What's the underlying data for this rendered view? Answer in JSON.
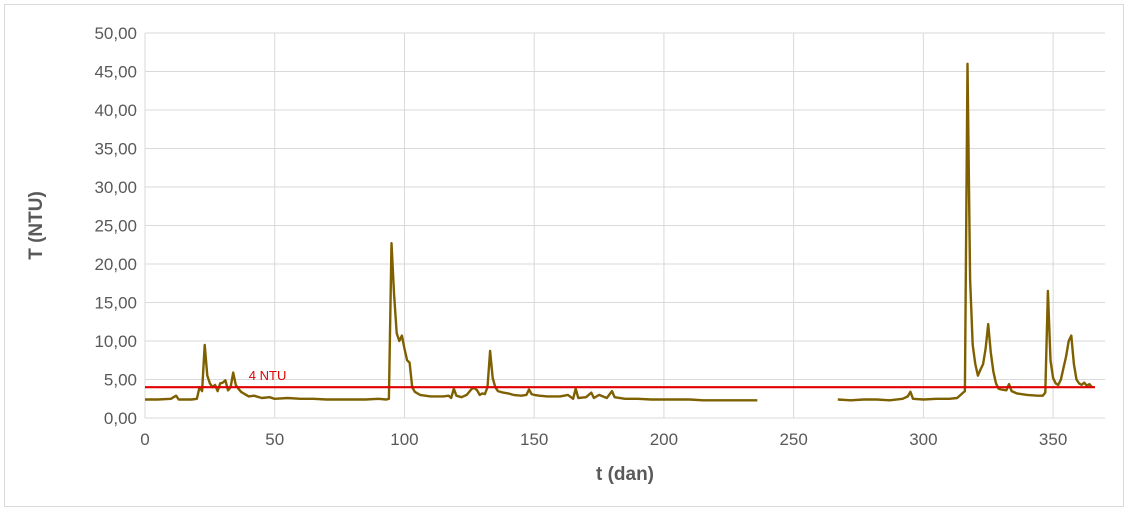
{
  "chart_data": {
    "type": "line",
    "title": "",
    "xlabel": "t (dan)",
    "ylabel": "T (NTU)",
    "xlim": [
      0,
      370
    ],
    "ylim": [
      0,
      50
    ],
    "x_ticks": [
      0,
      50,
      100,
      150,
      200,
      250,
      300,
      350
    ],
    "x_tick_labels": [
      "0",
      "50",
      "100",
      "150",
      "200",
      "250",
      "300",
      "350"
    ],
    "y_ticks": [
      0,
      5,
      10,
      15,
      20,
      25,
      30,
      35,
      40,
      45,
      50
    ],
    "y_tick_labels": [
      "0,00",
      "5,00",
      "10,00",
      "15,00",
      "20,00",
      "25,00",
      "30,00",
      "35,00",
      "40,00",
      "45,00",
      "50,00"
    ],
    "grid": "vertical-and-horizontal",
    "threshold": {
      "value": 4,
      "label": "4 NTU",
      "color": "#e00000"
    },
    "series": [
      {
        "color": "#7f6000",
        "segments": [
          [
            [
              0,
              2.4
            ],
            [
              5,
              2.4
            ],
            [
              10,
              2.5
            ],
            [
              12,
              2.9
            ],
            [
              13,
              2.4
            ],
            [
              18,
              2.4
            ],
            [
              20,
              2.5
            ],
            [
              21,
              4.0
            ],
            [
              22,
              3.5
            ],
            [
              23,
              9.5
            ],
            [
              24,
              5.5
            ],
            [
              25,
              4.5
            ],
            [
              26,
              4.0
            ],
            [
              27,
              4.3
            ],
            [
              28,
              3.5
            ],
            [
              29,
              4.5
            ],
            [
              30,
              4.6
            ],
            [
              31,
              4.9
            ],
            [
              32,
              3.6
            ],
            [
              33,
              4.0
            ],
            [
              34,
              5.9
            ],
            [
              35,
              4.3
            ],
            [
              36,
              3.8
            ],
            [
              37,
              3.4
            ],
            [
              38,
              3.2
            ],
            [
              40,
              2.8
            ],
            [
              42,
              2.9
            ],
            [
              45,
              2.6
            ],
            [
              48,
              2.7
            ],
            [
              50,
              2.5
            ],
            [
              55,
              2.6
            ],
            [
              60,
              2.5
            ],
            [
              65,
              2.5
            ],
            [
              70,
              2.4
            ],
            [
              75,
              2.4
            ],
            [
              80,
              2.4
            ],
            [
              85,
              2.4
            ],
            [
              90,
              2.5
            ],
            [
              93,
              2.4
            ],
            [
              94,
              2.5
            ],
            [
              95,
              22.7
            ],
            [
              96,
              16.0
            ],
            [
              97,
              11.0
            ],
            [
              98,
              10.0
            ],
            [
              99,
              10.7
            ],
            [
              100,
              9.0
            ],
            [
              101,
              7.5
            ],
            [
              102,
              7.2
            ],
            [
              103,
              4.0
            ],
            [
              104,
              3.4
            ],
            [
              106,
              3.0
            ],
            [
              110,
              2.8
            ],
            [
              115,
              2.8
            ],
            [
              117,
              2.9
            ],
            [
              118,
              2.6
            ],
            [
              119,
              3.8
            ],
            [
              120,
              2.9
            ],
            [
              122,
              2.7
            ],
            [
              124,
              3.0
            ],
            [
              126,
              3.8
            ],
            [
              127,
              3.9
            ],
            [
              128,
              3.6
            ],
            [
              129,
              3.0
            ],
            [
              130,
              3.2
            ],
            [
              131,
              3.1
            ],
            [
              132,
              4.0
            ],
            [
              133,
              8.7
            ],
            [
              134,
              5.2
            ],
            [
              135,
              4.0
            ],
            [
              136,
              3.5
            ],
            [
              138,
              3.3
            ],
            [
              140,
              3.2
            ],
            [
              142,
              3.0
            ],
            [
              145,
              2.9
            ],
            [
              147,
              3.0
            ],
            [
              148,
              3.7
            ],
            [
              149,
              3.1
            ],
            [
              150,
              3.0
            ],
            [
              152,
              2.9
            ],
            [
              155,
              2.8
            ],
            [
              160,
              2.8
            ],
            [
              163,
              3.0
            ],
            [
              165,
              2.5
            ],
            [
              166,
              3.8
            ],
            [
              167,
              2.6
            ],
            [
              170,
              2.7
            ],
            [
              172,
              3.3
            ],
            [
              173,
              2.6
            ],
            [
              175,
              3.0
            ],
            [
              178,
              2.6
            ],
            [
              180,
              3.5
            ],
            [
              181,
              2.7
            ],
            [
              185,
              2.5
            ],
            [
              190,
              2.5
            ],
            [
              195,
              2.4
            ],
            [
              200,
              2.4
            ],
            [
              205,
              2.4
            ],
            [
              210,
              2.4
            ],
            [
              215,
              2.3
            ],
            [
              220,
              2.3
            ],
            [
              225,
              2.3
            ],
            [
              230,
              2.3
            ],
            [
              236,
              2.3
            ]
          ],
          [
            [
              267,
              2.4
            ],
            [
              272,
              2.3
            ],
            [
              277,
              2.4
            ],
            [
              282,
              2.4
            ],
            [
              287,
              2.3
            ],
            [
              292,
              2.5
            ],
            [
              294,
              2.8
            ],
            [
              295,
              3.4
            ],
            [
              296,
              2.5
            ],
            [
              300,
              2.4
            ],
            [
              305,
              2.5
            ],
            [
              310,
              2.5
            ],
            [
              313,
              2.6
            ],
            [
              315,
              3.2
            ],
            [
              316,
              3.5
            ],
            [
              317,
              46.0
            ],
            [
              318,
              18.0
            ],
            [
              319,
              9.5
            ],
            [
              320,
              7.0
            ],
            [
              321,
              5.5
            ],
            [
              322,
              6.3
            ],
            [
              323,
              7.0
            ],
            [
              324,
              9.0
            ],
            [
              325,
              12.2
            ],
            [
              326,
              8.5
            ],
            [
              327,
              6.0
            ],
            [
              328,
              4.5
            ],
            [
              329,
              3.8
            ],
            [
              330,
              3.7
            ],
            [
              332,
              3.6
            ],
            [
              333,
              4.4
            ],
            [
              334,
              3.5
            ],
            [
              336,
              3.2
            ],
            [
              340,
              3.0
            ],
            [
              344,
              2.9
            ],
            [
              346,
              2.9
            ],
            [
              347,
              3.3
            ],
            [
              348,
              16.5
            ],
            [
              349,
              7.5
            ],
            [
              350,
              5.2
            ],
            [
              351,
              4.5
            ],
            [
              352,
              4.3
            ],
            [
              353,
              5.0
            ],
            [
              354,
              6.5
            ],
            [
              355,
              8.0
            ],
            [
              356,
              10.0
            ],
            [
              357,
              10.7
            ],
            [
              358,
              7.0
            ],
            [
              359,
              5.0
            ],
            [
              360,
              4.5
            ],
            [
              361,
              4.3
            ],
            [
              362,
              4.6
            ],
            [
              363,
              4.2
            ],
            [
              364,
              4.4
            ],
            [
              365,
              4.0
            ]
          ]
        ]
      }
    ]
  }
}
